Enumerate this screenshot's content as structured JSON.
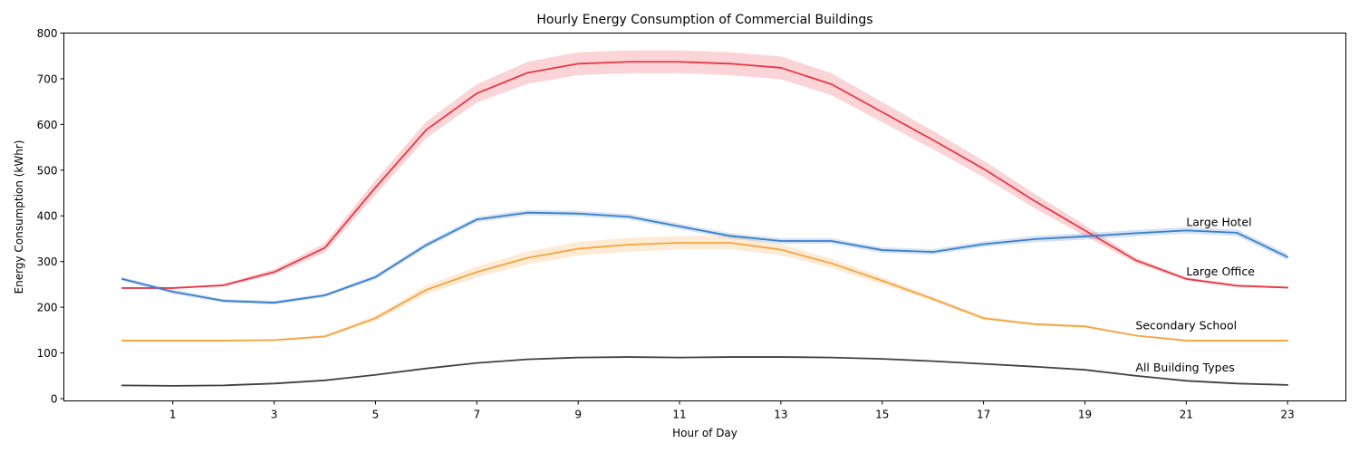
{
  "chart_data": {
    "type": "line",
    "title": "Hourly Energy Consumption of Commercial Buildings",
    "xlabel": "Hour of Day",
    "ylabel": "Energy Consumption (kWhr)",
    "xlim": [
      -1.15,
      24.15
    ],
    "ylim": [
      -5,
      800
    ],
    "xticks": [
      1,
      3,
      5,
      7,
      9,
      11,
      13,
      15,
      17,
      19,
      21,
      23
    ],
    "yticks": [
      0,
      100,
      200,
      300,
      400,
      500,
      600,
      700,
      800
    ],
    "grid": false,
    "legend": "none",
    "x": [
      0,
      1,
      2,
      3,
      4,
      5,
      6,
      7,
      8,
      9,
      10,
      11,
      12,
      13,
      14,
      15,
      16,
      17,
      18,
      19,
      20,
      21,
      22,
      23
    ],
    "series": [
      {
        "name": "Large Office",
        "color": "#e63946",
        "values": [
          242,
          242,
          248,
          277,
          330,
          462,
          588,
          668,
          713,
          733,
          737,
          737,
          733,
          724,
          688,
          627,
          566,
          503,
          433,
          368,
          303,
          262,
          247,
          243
        ],
        "band": [
          0,
          2,
          3,
          6,
          10,
          16,
          18,
          20,
          24,
          25,
          25,
          25,
          25,
          25,
          24,
          22,
          20,
          18,
          16,
          12,
          6,
          4,
          3,
          2
        ],
        "label_x": 21,
        "label_y": 270
      },
      {
        "name": "Large Hotel",
        "color": "#3a7dc9",
        "values": [
          262,
          234,
          214,
          210,
          226,
          266,
          336,
          392,
          407,
          405,
          398,
          377,
          356,
          345,
          345,
          325,
          321,
          338,
          349,
          355,
          362,
          368,
          363,
          310
        ],
        "band": [
          4,
          5,
          4,
          4,
          4,
          5,
          6,
          6,
          6,
          6,
          6,
          6,
          6,
          6,
          6,
          6,
          6,
          6,
          7,
          7,
          7,
          7,
          7,
          7
        ],
        "label_x": 21,
        "label_y": 378
      },
      {
        "name": "Secondary School",
        "color": "#f4a441",
        "values": [
          127,
          127,
          127,
          128,
          136,
          176,
          238,
          277,
          308,
          328,
          337,
          341,
          341,
          326,
          296,
          258,
          218,
          176,
          163,
          158,
          138,
          127,
          127,
          127
        ],
        "band": [
          2,
          2,
          2,
          2,
          3,
          6,
          9,
          12,
          14,
          15,
          15,
          15,
          14,
          12,
          10,
          8,
          5,
          4,
          3,
          3,
          2,
          2,
          2,
          2
        ],
        "label_x": 20,
        "label_y": 152
      },
      {
        "name": "All Building Types",
        "color": "#404040",
        "values": [
          29,
          28,
          29,
          33,
          40,
          52,
          66,
          78,
          86,
          90,
          91,
          90,
          91,
          91,
          90,
          87,
          82,
          76,
          70,
          63,
          50,
          39,
          33,
          30
        ],
        "band": [
          1,
          1,
          1,
          1,
          1,
          1,
          1,
          1,
          1,
          1,
          1,
          1,
          1,
          1,
          1,
          1,
          1,
          1,
          1,
          1,
          1,
          1,
          1,
          1
        ],
        "label_x": 20,
        "label_y": 59
      }
    ]
  }
}
